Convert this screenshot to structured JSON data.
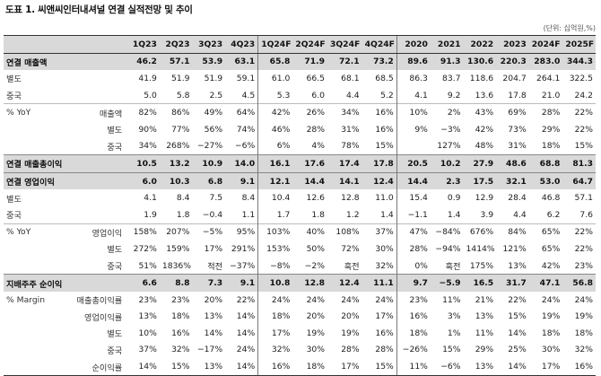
{
  "title": "도표 1. 씨앤씨인터내셔널 연결 실적전망 및 추이",
  "unit": "(단위: 십억원,%)",
  "columns": [
    "1Q23",
    "2Q23",
    "3Q23",
    "4Q23",
    "1Q24F",
    "2Q24F",
    "3Q24F",
    "4Q24F",
    "2020",
    "2021",
    "2022",
    "2023",
    "2024F",
    "2025F"
  ],
  "rows": [
    {
      "label": "연결 매출액",
      "sub": "",
      "hl": true,
      "values": [
        "46.2",
        "57.1",
        "53.9",
        "63.1",
        "65.8",
        "71.9",
        "72.1",
        "73.2",
        "89.6",
        "91.3",
        "130.6",
        "220.3",
        "283.0",
        "344.3"
      ]
    },
    {
      "label": "별도",
      "sub": "",
      "hl": false,
      "values": [
        "41.9",
        "51.9",
        "51.9",
        "59.1",
        "61.0",
        "66.5",
        "68.1",
        "68.5",
        "86.3",
        "83.7",
        "118.6",
        "204.7",
        "264.1",
        "322.5"
      ]
    },
    {
      "label": "중국",
      "sub": "",
      "hl": false,
      "values": [
        "5.0",
        "5.8",
        "2.5",
        "4.5",
        "5.3",
        "6.0",
        "4.4",
        "5.2",
        "4.1",
        "9.2",
        "13.6",
        "17.8",
        "21.0",
        "24.2"
      ]
    },
    {
      "label": "% YoY",
      "sub": "매출액",
      "hl": false,
      "gtop": true,
      "values": [
        "82%",
        "86%",
        "49%",
        "64%",
        "42%",
        "26%",
        "34%",
        "16%",
        "10%",
        "2%",
        "43%",
        "69%",
        "28%",
        "22%"
      ]
    },
    {
      "label": "",
      "sub": "별도",
      "hl": false,
      "values": [
        "90%",
        "77%",
        "56%",
        "74%",
        "46%",
        "28%",
        "31%",
        "16%",
        "9%",
        "−3%",
        "42%",
        "73%",
        "29%",
        "22%"
      ]
    },
    {
      "label": "",
      "sub": "중국",
      "hl": false,
      "values": [
        "34%",
        "268%",
        "−27%",
        "−6%",
        "6%",
        "4%",
        "78%",
        "15%",
        "",
        "127%",
        "48%",
        "31%",
        "18%",
        "15%"
      ]
    },
    {
      "label": "연결 매출총이익",
      "sub": "",
      "hl": true,
      "values": [
        "10.5",
        "13.2",
        "10.9",
        "14.0",
        "16.1",
        "17.6",
        "17.4",
        "17.8",
        "20.5",
        "10.2",
        "27.9",
        "48.6",
        "68.8",
        "81.3"
      ]
    },
    {
      "label": "연결 영업이익",
      "sub": "",
      "hl": true,
      "values": [
        "6.0",
        "10.3",
        "6.8",
        "9.1",
        "12.1",
        "14.4",
        "14.1",
        "12.4",
        "14.4",
        "2.3",
        "17.5",
        "32.1",
        "53.0",
        "64.7"
      ]
    },
    {
      "label": "별도",
      "sub": "",
      "hl": false,
      "values": [
        "4.1",
        "8.4",
        "7.5",
        "8.4",
        "10.4",
        "12.6",
        "12.8",
        "11.0",
        "15.4",
        "0.9",
        "12.9",
        "28.4",
        "46.8",
        "57.1"
      ]
    },
    {
      "label": "중국",
      "sub": "",
      "hl": false,
      "values": [
        "1.9",
        "1.8",
        "−0.4",
        "1.1",
        "1.7",
        "1.8",
        "1.2",
        "1.4",
        "−1.1",
        "1.4",
        "3.9",
        "4.4",
        "6.2",
        "7.6"
      ]
    },
    {
      "label": "% YoY",
      "sub": "영업이익",
      "hl": false,
      "gtop": true,
      "values": [
        "158%",
        "207%",
        "−5%",
        "95%",
        "103%",
        "40%",
        "108%",
        "37%",
        "47%",
        "−84%",
        "676%",
        "84%",
        "65%",
        "22%"
      ]
    },
    {
      "label": "",
      "sub": "별도",
      "hl": false,
      "values": [
        "272%",
        "159%",
        "17%",
        "291%",
        "153%",
        "50%",
        "72%",
        "30%",
        "28%",
        "−94%",
        "1414%",
        "121%",
        "65%",
        "22%"
      ]
    },
    {
      "label": "",
      "sub": "중국",
      "hl": false,
      "values": [
        "51%",
        "1836%",
        "적전",
        "−37%",
        "−8%",
        "−2%",
        "흑전",
        "32%",
        "0%",
        "흑전",
        "175%",
        "13%",
        "42%",
        "23%"
      ]
    },
    {
      "label": "지배주주 순이익",
      "sub": "",
      "hl": true,
      "values": [
        "6.6",
        "8.8",
        "7.3",
        "9.1",
        "10.8",
        "12.8",
        "12.4",
        "11.1",
        "9.7",
        "−5.9",
        "16.5",
        "31.7",
        "47.1",
        "56.8"
      ]
    },
    {
      "label": "% Margin",
      "sub": "매출총이익률",
      "hl": false,
      "values": [
        "23%",
        "23%",
        "20%",
        "22%",
        "24%",
        "24%",
        "24%",
        "24%",
        "23%",
        "11%",
        "21%",
        "22%",
        "24%",
        "24%"
      ]
    },
    {
      "label": "",
      "sub": "영업이익률",
      "hl": false,
      "values": [
        "13%",
        "18%",
        "13%",
        "14%",
        "18%",
        "20%",
        "20%",
        "17%",
        "16%",
        "3%",
        "13%",
        "15%",
        "19%",
        "19%"
      ]
    },
    {
      "label": "",
      "sub": "별도",
      "hl": false,
      "values": [
        "10%",
        "16%",
        "14%",
        "14%",
        "17%",
        "19%",
        "19%",
        "16%",
        "18%",
        "1%",
        "11%",
        "14%",
        "18%",
        "18%"
      ]
    },
    {
      "label": "",
      "sub": "중국",
      "hl": false,
      "values": [
        "37%",
        "32%",
        "−17%",
        "24%",
        "32%",
        "30%",
        "28%",
        "28%",
        "−26%",
        "15%",
        "29%",
        "25%",
        "30%",
        "32%"
      ]
    },
    {
      "label": "",
      "sub": "순이익률",
      "hl": false,
      "last": true,
      "values": [
        "14%",
        "15%",
        "13%",
        "14%",
        "16%",
        "18%",
        "17%",
        "15%",
        "11%",
        "−6%",
        "13%",
        "14%",
        "17%",
        "16%"
      ]
    }
  ]
}
